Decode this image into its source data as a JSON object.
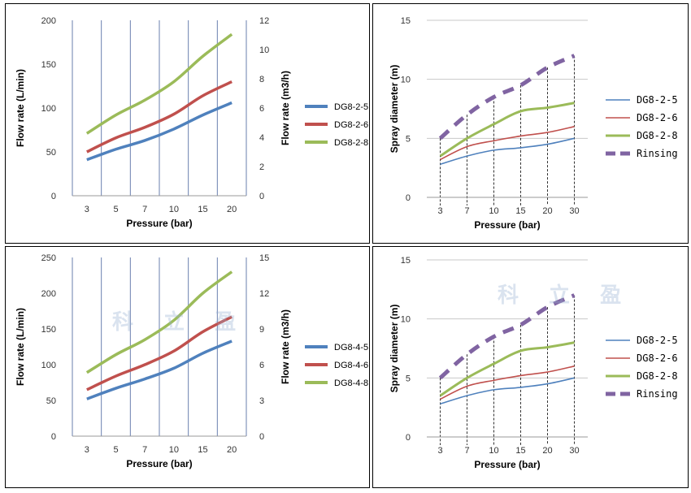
{
  "watermark": {
    "text": "科 立 盈"
  },
  "chart_data": [
    {
      "type": "line",
      "categories": [
        "3",
        "5",
        "7",
        "10",
        "15",
        "20"
      ],
      "ylabel": "Flow rate (L/min)",
      "y2label": "Flow rate (m3/h)",
      "xlabel": "Pressure (bar)",
      "ylim": [
        0,
        200
      ],
      "y2lim": [
        0,
        12
      ],
      "yticks": [
        "0",
        "50",
        "100",
        "150",
        "200"
      ],
      "y2ticks": [
        "0",
        "2",
        "4",
        "6",
        "8",
        "10",
        "12"
      ],
      "grid": "vertical",
      "legend_position": "right",
      "series": [
        {
          "name": "DG8-2-5",
          "color": "#4f81bd",
          "values": [
            41,
            53,
            63,
            76,
            92,
            106
          ]
        },
        {
          "name": "DG8-2-6",
          "color": "#c0504d",
          "values": [
            50,
            66,
            78,
            93,
            114,
            130
          ]
        },
        {
          "name": "DG8-2-8",
          "color": "#9bbb59",
          "values": [
            71,
            92,
            109,
            130,
            159,
            184
          ]
        }
      ]
    },
    {
      "type": "line",
      "categories": [
        "3",
        "7",
        "10",
        "15",
        "20",
        "30"
      ],
      "ylabel": "Spray diameter (m)",
      "xlabel": "Pressure (bar)",
      "ylim": [
        0,
        15
      ],
      "yticks": [
        "0",
        "5",
        "10",
        "15"
      ],
      "grid": "horizontal",
      "legend_position": "right",
      "series": [
        {
          "name": "DG8-2-5",
          "color": "#4f81bd",
          "values": [
            2.8,
            3.5,
            4.0,
            4.2,
            4.5,
            5.0
          ]
        },
        {
          "name": "DG8-2-6",
          "color": "#c0504d",
          "values": [
            3.2,
            4.3,
            4.8,
            5.2,
            5.5,
            6.0
          ]
        },
        {
          "name": "DG8-2-8",
          "color": "#9bbb59",
          "values": [
            3.5,
            5.0,
            6.2,
            7.3,
            7.6,
            8.0
          ]
        },
        {
          "name": "Rinsing",
          "color": "#8064a2",
          "dashed": true,
          "values": [
            5.0,
            7.0,
            8.5,
            9.5,
            11.0,
            12.0
          ]
        }
      ]
    },
    {
      "type": "line",
      "categories": [
        "3",
        "5",
        "7",
        "10",
        "15",
        "20"
      ],
      "ylabel": "Flow rate (L/min)",
      "y2label": "Flow rate (m3/h)",
      "xlabel": "Pressure (bar)",
      "ylim": [
        0,
        250
      ],
      "y2lim": [
        0,
        15
      ],
      "yticks": [
        "0",
        "50",
        "100",
        "150",
        "200",
        "250"
      ],
      "y2ticks": [
        "0",
        "3",
        "6",
        "9",
        "12",
        "15"
      ],
      "grid": "vertical",
      "legend_position": "right",
      "series": [
        {
          "name": "DG8-4-5",
          "color": "#4f81bd",
          "values": [
            52,
            67,
            80,
            95,
            116,
            133
          ]
        },
        {
          "name": "DG8-4-6",
          "color": "#c0504d",
          "values": [
            65,
            84,
            100,
            119,
            146,
            167
          ]
        },
        {
          "name": "DG8-4-8",
          "color": "#9bbb59",
          "values": [
            89,
            114,
            135,
            162,
            200,
            230
          ]
        }
      ]
    },
    {
      "type": "line",
      "categories": [
        "3",
        "7",
        "10",
        "15",
        "20",
        "30"
      ],
      "ylabel": "Spray diameter (m)",
      "xlabel": "Pressure (bar)",
      "ylim": [
        0,
        15
      ],
      "yticks": [
        "0",
        "5",
        "10",
        "15"
      ],
      "grid": "horizontal",
      "legend_position": "right",
      "series": [
        {
          "name": "DG8-2-5",
          "color": "#4f81bd",
          "values": [
            2.8,
            3.5,
            4.0,
            4.2,
            4.5,
            5.0
          ]
        },
        {
          "name": "DG8-2-6",
          "color": "#c0504d",
          "values": [
            3.2,
            4.3,
            4.8,
            5.2,
            5.5,
            6.0
          ]
        },
        {
          "name": "DG8-2-8",
          "color": "#9bbb59",
          "values": [
            3.5,
            5.0,
            6.2,
            7.3,
            7.6,
            8.0
          ]
        },
        {
          "name": "Rinsing",
          "color": "#8064a2",
          "dashed": true,
          "values": [
            5.0,
            7.0,
            8.5,
            9.5,
            11.0,
            12.0
          ]
        }
      ]
    }
  ]
}
